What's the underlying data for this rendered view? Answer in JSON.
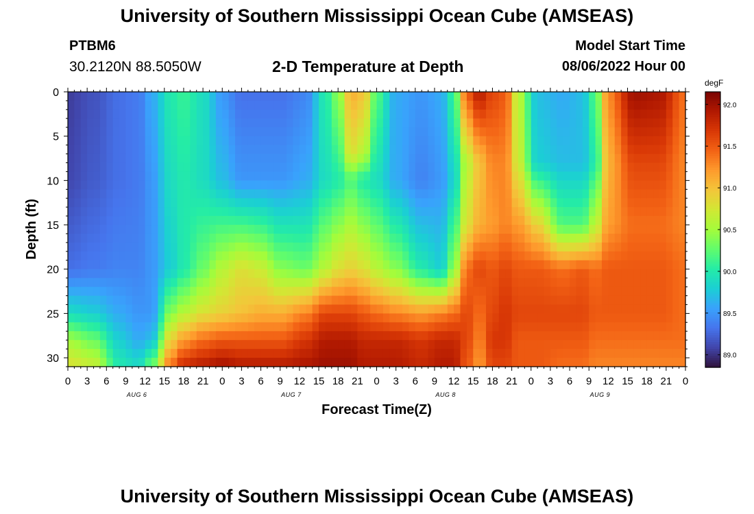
{
  "page": {
    "title_top": "University of Southern Mississippi Ocean Cube (AMSEAS)",
    "title_bottom": "University of Southern Mississippi Ocean Cube (AMSEAS)",
    "station_id": "PTBM6",
    "station_location": "30.2120N  88.5050W",
    "subtitle": "2-D Temperature at Depth",
    "model_start_label": "Model Start Time",
    "model_start_value": "08/06/2022 Hour 00"
  },
  "chart_data": {
    "type": "heatmap",
    "title": "2-D Temperature at Depth",
    "xlabel": "Forecast Time(Z)",
    "ylabel": "Depth (ft)",
    "x_units": "hours since model start (08/06/2022 00Z)",
    "x_range": [
      0,
      96
    ],
    "x_tick_labels": [
      "0",
      "3",
      "6",
      "9",
      "12",
      "15",
      "18",
      "21",
      "0",
      "3",
      "6",
      "9",
      "12",
      "15",
      "18",
      "21",
      "0",
      "3",
      "6",
      "9",
      "12",
      "15",
      "18",
      "21",
      "0",
      "3",
      "6",
      "9",
      "12",
      "15",
      "18",
      "21",
      "0"
    ],
    "day_labels": [
      "AUG 6",
      "AUG 7",
      "AUG 8",
      "AUG 9"
    ],
    "y_range": [
      0,
      31
    ],
    "y_inverted": true,
    "y_tick_labels": [
      "0",
      "5",
      "10",
      "15",
      "20",
      "25",
      "30"
    ],
    "colorbar": {
      "units": "degF",
      "range": [
        88.85,
        92.15
      ],
      "tick_labels": [
        "89.0",
        "89.5",
        "90.0",
        "90.5",
        "91.0",
        "91.5",
        "92.0"
      ],
      "palette": [
        "#30123b",
        "#4145ab",
        "#4675ed",
        "#39a2fc",
        "#1bcfd4",
        "#24eca6",
        "#61fc6c",
        "#a4fc3b",
        "#d1e834",
        "#f3c63a",
        "#fe9b2d",
        "#f36315",
        "#d93806",
        "#b11901",
        "#7a0403"
      ]
    },
    "columns": [
      {
        "t": 0,
        "profile": [
          [
            0,
            89.05
          ],
          [
            10,
            89.1
          ],
          [
            20,
            89.3
          ],
          [
            25,
            89.9
          ],
          [
            28,
            90.5
          ],
          [
            31,
            90.8
          ]
        ]
      },
      {
        "t": 4,
        "profile": [
          [
            0,
            89.15
          ],
          [
            10,
            89.2
          ],
          [
            20,
            89.35
          ],
          [
            25,
            89.8
          ],
          [
            28,
            90.3
          ],
          [
            31,
            90.7
          ]
        ]
      },
      {
        "t": 8,
        "profile": [
          [
            0,
            89.3
          ],
          [
            10,
            89.3
          ],
          [
            20,
            89.4
          ],
          [
            25,
            89.6
          ],
          [
            28,
            89.8
          ],
          [
            31,
            90.0
          ]
        ]
      },
      {
        "t": 11,
        "profile": [
          [
            0,
            89.35
          ],
          [
            10,
            89.35
          ],
          [
            20,
            89.4
          ],
          [
            25,
            89.5
          ],
          [
            28,
            89.6
          ],
          [
            31,
            89.9
          ]
        ]
      },
      {
        "t": 13,
        "profile": [
          [
            0,
            89.6
          ],
          [
            10,
            89.5
          ],
          [
            20,
            89.5
          ],
          [
            25,
            89.5
          ],
          [
            28,
            89.7
          ],
          [
            31,
            90.3
          ]
        ]
      },
      {
        "t": 16,
        "profile": [
          [
            0,
            90.0
          ],
          [
            10,
            89.9
          ],
          [
            20,
            89.8
          ],
          [
            25,
            90.4
          ],
          [
            28,
            90.9
          ],
          [
            31,
            91.4
          ]
        ]
      },
      {
        "t": 18,
        "profile": [
          [
            0,
            90.1
          ],
          [
            10,
            90.0
          ],
          [
            20,
            90.0
          ],
          [
            25,
            90.6
          ],
          [
            28,
            91.2
          ],
          [
            31,
            91.8
          ]
        ]
      },
      {
        "t": 21,
        "profile": [
          [
            0,
            89.9
          ],
          [
            10,
            89.9
          ],
          [
            20,
            90.3
          ],
          [
            25,
            90.8
          ],
          [
            28,
            91.4
          ],
          [
            31,
            91.9
          ]
        ]
      },
      {
        "t": 24,
        "profile": [
          [
            0,
            89.5
          ],
          [
            10,
            89.7
          ],
          [
            20,
            90.6
          ],
          [
            25,
            90.9
          ],
          [
            28,
            91.5
          ],
          [
            31,
            92.0
          ]
        ]
      },
      {
        "t": 27,
        "profile": [
          [
            0,
            89.3
          ],
          [
            10,
            89.5
          ],
          [
            20,
            90.8
          ],
          [
            25,
            91.0
          ],
          [
            28,
            91.5
          ],
          [
            31,
            91.9
          ]
        ]
      },
      {
        "t": 30,
        "profile": [
          [
            0,
            89.3
          ],
          [
            10,
            89.5
          ],
          [
            20,
            90.7
          ],
          [
            25,
            91.1
          ],
          [
            28,
            91.5
          ],
          [
            31,
            91.9
          ]
        ]
      },
      {
        "t": 33,
        "profile": [
          [
            0,
            89.3
          ],
          [
            10,
            89.5
          ],
          [
            20,
            90.4
          ],
          [
            25,
            91.1
          ],
          [
            28,
            91.5
          ],
          [
            31,
            91.9
          ]
        ]
      },
      {
        "t": 37,
        "profile": [
          [
            0,
            89.4
          ],
          [
            10,
            89.6
          ],
          [
            20,
            90.3
          ],
          [
            25,
            91.3
          ],
          [
            28,
            91.7
          ],
          [
            31,
            91.95
          ]
        ]
      },
      {
        "t": 40,
        "profile": [
          [
            0,
            90.0
          ],
          [
            10,
            89.9
          ],
          [
            20,
            90.6
          ],
          [
            25,
            91.6
          ],
          [
            28,
            91.9
          ],
          [
            31,
            92.0
          ]
        ]
      },
      {
        "t": 42,
        "profile": [
          [
            0,
            90.4
          ],
          [
            10,
            90.0
          ],
          [
            20,
            90.8
          ],
          [
            25,
            91.6
          ],
          [
            28,
            91.9
          ],
          [
            31,
            92.0
          ]
        ]
      },
      {
        "t": 44,
        "profile": [
          [
            0,
            91.1
          ],
          [
            7,
            90.8
          ],
          [
            10,
            90.2
          ],
          [
            20,
            90.9
          ],
          [
            25,
            91.6
          ],
          [
            28,
            91.9
          ],
          [
            31,
            92.0
          ]
        ]
      },
      {
        "t": 46,
        "profile": [
          [
            0,
            91.0
          ],
          [
            7,
            90.6
          ],
          [
            10,
            90.0
          ],
          [
            20,
            90.8
          ],
          [
            25,
            91.5
          ],
          [
            28,
            91.8
          ],
          [
            31,
            91.9
          ]
        ]
      },
      {
        "t": 48,
        "profile": [
          [
            0,
            90.2
          ],
          [
            10,
            89.9
          ],
          [
            20,
            90.6
          ],
          [
            25,
            91.4
          ],
          [
            28,
            91.8
          ],
          [
            31,
            91.9
          ]
        ]
      },
      {
        "t": 51,
        "profile": [
          [
            0,
            89.6
          ],
          [
            10,
            89.6
          ],
          [
            20,
            90.4
          ],
          [
            25,
            91.3
          ],
          [
            28,
            91.8
          ],
          [
            31,
            91.9
          ]
        ]
      },
      {
        "t": 55,
        "profile": [
          [
            0,
            89.5
          ],
          [
            10,
            89.4
          ],
          [
            20,
            90.0
          ],
          [
            25,
            91.2
          ],
          [
            28,
            91.7
          ],
          [
            31,
            91.8
          ]
        ]
      },
      {
        "t": 58,
        "profile": [
          [
            0,
            89.6
          ],
          [
            10,
            89.5
          ],
          [
            20,
            89.8
          ],
          [
            25,
            91.3
          ],
          [
            28,
            91.8
          ],
          [
            31,
            91.9
          ]
        ]
      },
      {
        "t": 60,
        "profile": [
          [
            0,
            90.1
          ],
          [
            10,
            89.8
          ],
          [
            20,
            90.4
          ],
          [
            25,
            91.4
          ],
          [
            28,
            91.8
          ],
          [
            31,
            91.9
          ]
        ]
      },
      {
        "t": 62,
        "profile": [
          [
            0,
            91.5
          ],
          [
            8,
            90.6
          ],
          [
            15,
            90.8
          ],
          [
            20,
            91.4
          ],
          [
            25,
            91.6
          ],
          [
            28,
            91.6
          ],
          [
            31,
            91.5
          ]
        ]
      },
      {
        "t": 64,
        "profile": [
          [
            0,
            91.9
          ],
          [
            8,
            91.0
          ],
          [
            15,
            91.1
          ],
          [
            20,
            91.6
          ],
          [
            25,
            91.4
          ],
          [
            28,
            91.3
          ],
          [
            31,
            91.2
          ]
        ]
      },
      {
        "t": 66,
        "profile": [
          [
            0,
            91.6
          ],
          [
            8,
            91.3
          ],
          [
            15,
            91.2
          ],
          [
            20,
            91.5
          ],
          [
            25,
            91.6
          ],
          [
            28,
            91.7
          ],
          [
            31,
            91.6
          ]
        ]
      },
      {
        "t": 68,
        "profile": [
          [
            0,
            91.5
          ],
          [
            8,
            91.3
          ],
          [
            15,
            91.3
          ],
          [
            20,
            91.6
          ],
          [
            25,
            91.7
          ],
          [
            28,
            91.7
          ],
          [
            31,
            91.6
          ]
        ]
      },
      {
        "t": 70,
        "profile": [
          [
            0,
            90.6
          ],
          [
            8,
            90.7
          ],
          [
            15,
            91.2
          ],
          [
            20,
            91.5
          ],
          [
            25,
            91.6
          ],
          [
            28,
            91.5
          ],
          [
            31,
            91.5
          ]
        ]
      },
      {
        "t": 73,
        "profile": [
          [
            0,
            89.7
          ],
          [
            8,
            89.8
          ],
          [
            15,
            90.9
          ],
          [
            20,
            91.5
          ],
          [
            25,
            91.6
          ],
          [
            28,
            91.5
          ],
          [
            31,
            91.5
          ]
        ]
      },
      {
        "t": 77,
        "profile": [
          [
            0,
            89.6
          ],
          [
            8,
            89.7
          ],
          [
            15,
            90.2
          ],
          [
            20,
            91.4
          ],
          [
            25,
            91.6
          ],
          [
            28,
            91.5
          ],
          [
            31,
            91.4
          ]
        ]
      },
      {
        "t": 80,
        "profile": [
          [
            0,
            89.7
          ],
          [
            8,
            89.7
          ],
          [
            15,
            90.2
          ],
          [
            20,
            91.5
          ],
          [
            25,
            91.6
          ],
          [
            28,
            91.5
          ],
          [
            31,
            91.4
          ]
        ]
      },
      {
        "t": 82,
        "profile": [
          [
            0,
            90.2
          ],
          [
            8,
            90.0
          ],
          [
            15,
            90.6
          ],
          [
            20,
            91.4
          ],
          [
            25,
            91.5
          ],
          [
            28,
            91.4
          ],
          [
            31,
            91.3
          ]
        ]
      },
      {
        "t": 84,
        "profile": [
          [
            0,
            91.3
          ],
          [
            8,
            91.1
          ],
          [
            15,
            91.2
          ],
          [
            20,
            91.5
          ],
          [
            25,
            91.5
          ],
          [
            28,
            91.4
          ],
          [
            31,
            91.3
          ]
        ]
      },
      {
        "t": 88,
        "profile": [
          [
            0,
            92.0
          ],
          [
            8,
            91.6
          ],
          [
            15,
            91.4
          ],
          [
            20,
            91.5
          ],
          [
            25,
            91.5
          ],
          [
            28,
            91.4
          ],
          [
            31,
            91.3
          ]
        ]
      },
      {
        "t": 92,
        "profile": [
          [
            0,
            91.95
          ],
          [
            8,
            91.6
          ],
          [
            15,
            91.4
          ],
          [
            20,
            91.5
          ],
          [
            25,
            91.5
          ],
          [
            28,
            91.4
          ],
          [
            31,
            91.3
          ]
        ]
      },
      {
        "t": 96,
        "profile": [
          [
            0,
            91.4
          ],
          [
            8,
            91.3
          ],
          [
            15,
            91.3
          ],
          [
            20,
            91.4
          ],
          [
            25,
            91.4
          ],
          [
            28,
            91.4
          ],
          [
            31,
            91.3
          ]
        ]
      }
    ]
  }
}
